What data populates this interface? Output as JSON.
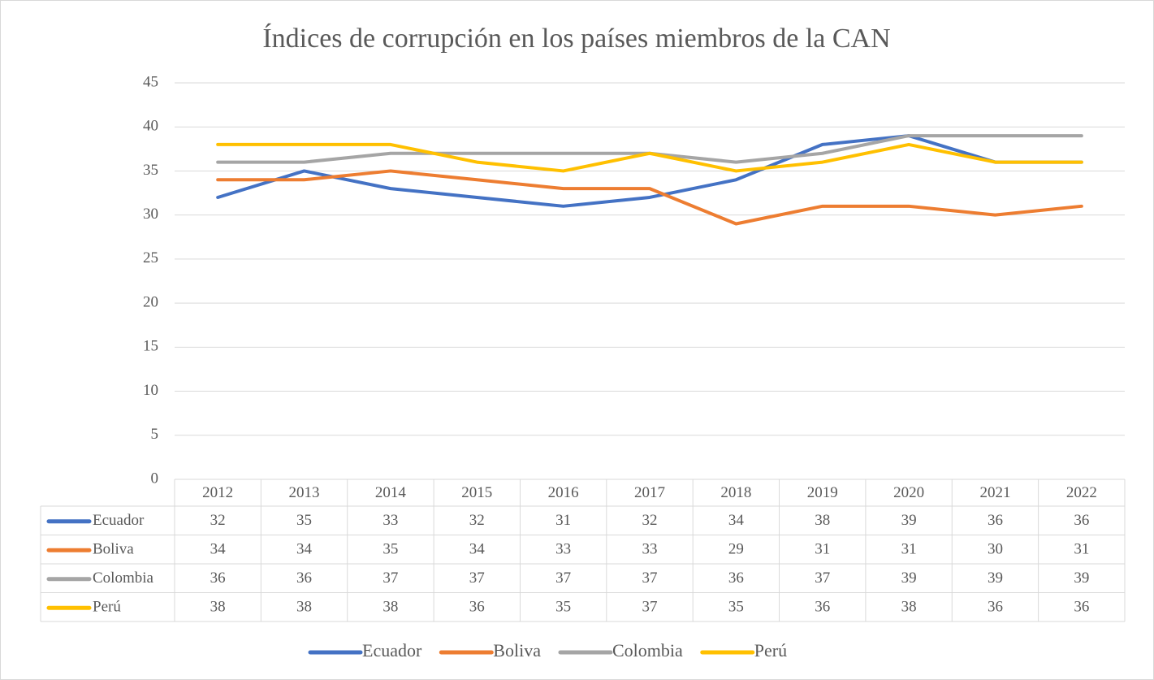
{
  "chart_data": {
    "type": "line",
    "title": "Índices de corrupción en los países miembros de la CAN",
    "categories": [
      "2012",
      "2013",
      "2014",
      "2015",
      "2016",
      "2017",
      "2018",
      "2019",
      "2020",
      "2021",
      "2022"
    ],
    "series": [
      {
        "name": "Ecuador",
        "color": "#4472c4",
        "values": [
          32,
          35,
          33,
          32,
          31,
          32,
          34,
          38,
          39,
          36,
          36
        ]
      },
      {
        "name": "Boliva",
        "color": "#ed7d31",
        "values": [
          34,
          34,
          35,
          34,
          33,
          33,
          29,
          31,
          31,
          30,
          31
        ]
      },
      {
        "name": "Colombia",
        "color": "#a5a5a5",
        "values": [
          36,
          36,
          37,
          37,
          37,
          37,
          36,
          37,
          39,
          39,
          39
        ]
      },
      {
        "name": "Perú",
        "color": "#ffc000",
        "values": [
          38,
          38,
          38,
          36,
          35,
          37,
          35,
          36,
          38,
          36,
          36
        ]
      }
    ],
    "ylim": [
      0,
      45
    ],
    "yticks": [
      0,
      5,
      10,
      15,
      20,
      25,
      30,
      35,
      40,
      45
    ],
    "grid": true,
    "legend": "bottom",
    "data_table": true
  }
}
